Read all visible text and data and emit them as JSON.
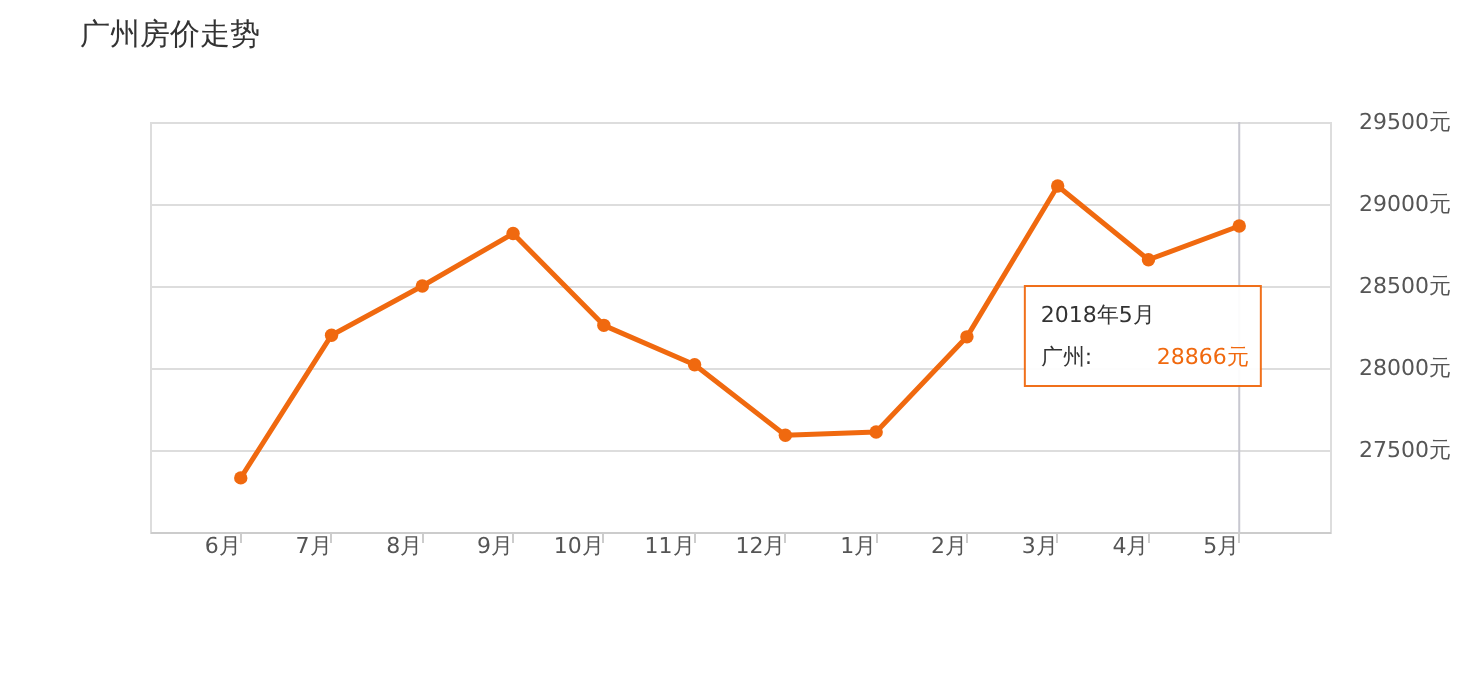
{
  "chart_data": {
    "type": "line",
    "title": "广州房价走势",
    "categories": [
      "6月",
      "7月",
      "8月",
      "9月",
      "10月",
      "11月",
      "12月",
      "1月",
      "2月",
      "3月",
      "4月",
      "5月"
    ],
    "series": [
      {
        "color": "#f0690f",
        "values": [
          27330,
          28200,
          28500,
          28820,
          28260,
          28020,
          27590,
          27610,
          28190,
          29110,
          28660,
          28866
        ]
      }
    ],
    "ylim": [
      27000,
      29500
    ],
    "yticks": [
      {
        "value": 27500,
        "label": "27500元"
      },
      {
        "value": 28000,
        "label": "28000元"
      },
      {
        "value": 28500,
        "label": "28500元"
      },
      {
        "value": 29000,
        "label": "29000元"
      },
      {
        "value": 29500,
        "label": "29500元"
      }
    ],
    "grid": "y",
    "marker": "circle",
    "line_style": "solid",
    "ref_lines": [
      {
        "axis": "x",
        "value": "5月",
        "color": "#c8c8d0"
      }
    ],
    "annotations": [
      "2018年5月",
      "广州:",
      "28866元"
    ]
  }
}
